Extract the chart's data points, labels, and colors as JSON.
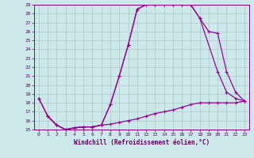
{
  "bg_color": "#cce8e8",
  "grid_color": "#aacccc",
  "line_color": "#990099",
  "marker": "+",
  "xlabel": "Windchill (Refroidissement éolien,°C)",
  "xlim": [
    -0.5,
    23.5
  ],
  "ylim": [
    15,
    29
  ],
  "yticks": [
    15,
    16,
    17,
    18,
    19,
    20,
    21,
    22,
    23,
    24,
    25,
    26,
    27,
    28,
    29
  ],
  "xticks": [
    0,
    1,
    2,
    3,
    4,
    5,
    6,
    7,
    8,
    9,
    10,
    11,
    12,
    13,
    14,
    15,
    16,
    17,
    18,
    19,
    20,
    21,
    22,
    23
  ],
  "curve1_x": [
    0,
    1,
    2,
    3,
    4,
    5,
    6,
    7,
    8,
    9,
    10,
    11,
    12,
    13,
    14,
    15,
    16,
    17,
    18,
    20,
    21,
    22,
    23
  ],
  "curve1_y": [
    18.5,
    16.5,
    15.5,
    15.0,
    15.2,
    15.3,
    15.3,
    15.5,
    17.8,
    21.0,
    24.5,
    28.5,
    29.0,
    29.0,
    29.0,
    29.0,
    29.0,
    29.0,
    27.5,
    21.5,
    19.2,
    18.5,
    18.2
  ],
  "curve2_x": [
    0,
    1,
    2,
    3,
    4,
    5,
    6,
    7,
    8,
    9,
    10,
    11,
    12,
    13,
    14,
    15,
    16,
    17,
    18,
    19,
    20,
    21,
    22,
    23
  ],
  "curve2_y": [
    18.5,
    16.5,
    15.5,
    15.0,
    15.2,
    15.3,
    15.3,
    15.5,
    17.8,
    21.0,
    24.5,
    28.5,
    29.0,
    29.0,
    29.0,
    29.0,
    29.0,
    29.0,
    27.5,
    26.0,
    25.8,
    21.5,
    19.2,
    18.2
  ],
  "curve3_x": [
    1,
    2,
    3,
    4,
    5,
    6,
    7,
    8,
    9,
    10,
    11,
    12,
    13,
    14,
    15,
    16,
    17,
    18,
    19,
    20,
    21,
    22,
    23
  ],
  "curve3_y": [
    16.5,
    15.5,
    15.0,
    15.2,
    15.3,
    15.3,
    15.5,
    15.6,
    15.8,
    16.0,
    16.2,
    16.5,
    16.8,
    17.0,
    17.2,
    17.5,
    17.8,
    18.0,
    18.0,
    18.0,
    18.0,
    18.0,
    18.2
  ]
}
